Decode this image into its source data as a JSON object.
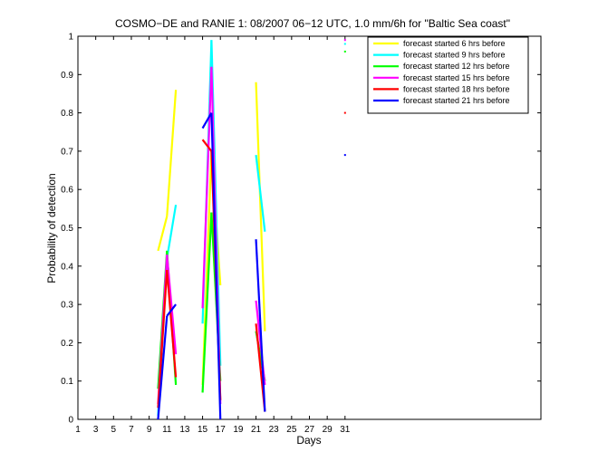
{
  "chart_data": {
    "type": "line",
    "title": "COSMO−DE and RANIE 1: 08/2007 06−12 UTC, 1.0 mm/6h for \"Baltic Sea coast\"",
    "xlabel": "Days",
    "ylabel": "Probability of detection",
    "xlim": [
      1,
      53
    ],
    "ylim": [
      0,
      1
    ],
    "x_tick_labels": [
      "1",
      "3",
      "5",
      "7",
      "9",
      "11",
      "13",
      "15",
      "17",
      "19",
      "21",
      "23",
      "25",
      "27",
      "29",
      "31"
    ],
    "y_tick_labels": [
      "0",
      "0.1",
      "0.2",
      "0.3",
      "0.4",
      "0.5",
      "0.6",
      "0.7",
      "0.8",
      "0.9",
      "1"
    ],
    "grid": false,
    "legend_position": "top-right",
    "series": [
      {
        "name": "forecast started 6 hrs before",
        "color": "#ffff00",
        "points": [
          [
            10,
            0.44
          ],
          [
            11,
            0.53
          ],
          [
            12,
            0.86
          ],
          [
            15,
            0.09
          ],
          [
            16,
            0.7
          ],
          [
            17,
            0.35
          ],
          [
            21,
            0.88
          ],
          [
            22,
            0.23
          ],
          [
            31,
            null
          ]
        ]
      },
      {
        "name": "forecast started 9 hrs before",
        "color": "#00ffff",
        "points": [
          [
            10,
            0.01
          ],
          [
            11,
            0.42
          ],
          [
            12,
            0.56
          ],
          [
            15,
            0.25
          ],
          [
            16,
            0.99
          ],
          [
            17,
            0.14
          ],
          [
            21,
            0.69
          ],
          [
            22,
            0.49
          ],
          [
            31,
            0.98
          ]
        ]
      },
      {
        "name": "forecast started 12 hrs before",
        "color": "#00ff00",
        "points": [
          [
            10,
            0.08
          ],
          [
            11,
            0.44
          ],
          [
            12,
            0.09
          ],
          [
            15,
            0.07
          ],
          [
            16,
            0.54
          ],
          [
            17,
            0.1
          ],
          [
            21,
            0.23
          ],
          [
            22,
            0.1
          ],
          [
            31,
            0.96
          ]
        ]
      },
      {
        "name": "forecast started 15 hrs before",
        "color": "#ff00ff",
        "points": [
          [
            10,
            0.04
          ],
          [
            11,
            0.43
          ],
          [
            12,
            0.17
          ],
          [
            15,
            0.29
          ],
          [
            16,
            0.92
          ],
          [
            17,
            0.04
          ],
          [
            21,
            0.31
          ],
          [
            22,
            0.09
          ],
          [
            31,
            0.99
          ]
        ]
      },
      {
        "name": "forecast started 18 hrs before",
        "color": "#ff0000",
        "points": [
          [
            10,
            0.03
          ],
          [
            11,
            0.39
          ],
          [
            12,
            0.11
          ],
          [
            15,
            0.73
          ],
          [
            16,
            0.7
          ],
          [
            17,
            0.05
          ],
          [
            21,
            0.25
          ],
          [
            22,
            0.02
          ],
          [
            31,
            0.8
          ]
        ]
      },
      {
        "name": "forecast started 21 hrs before",
        "color": "#0000ff",
        "points": [
          [
            10,
            0.0
          ],
          [
            11,
            0.27
          ],
          [
            12,
            0.3
          ],
          [
            15,
            0.76
          ],
          [
            16,
            0.8
          ],
          [
            17,
            0.0
          ],
          [
            21,
            0.47
          ],
          [
            22,
            0.02
          ],
          [
            31,
            0.69
          ]
        ]
      }
    ]
  }
}
